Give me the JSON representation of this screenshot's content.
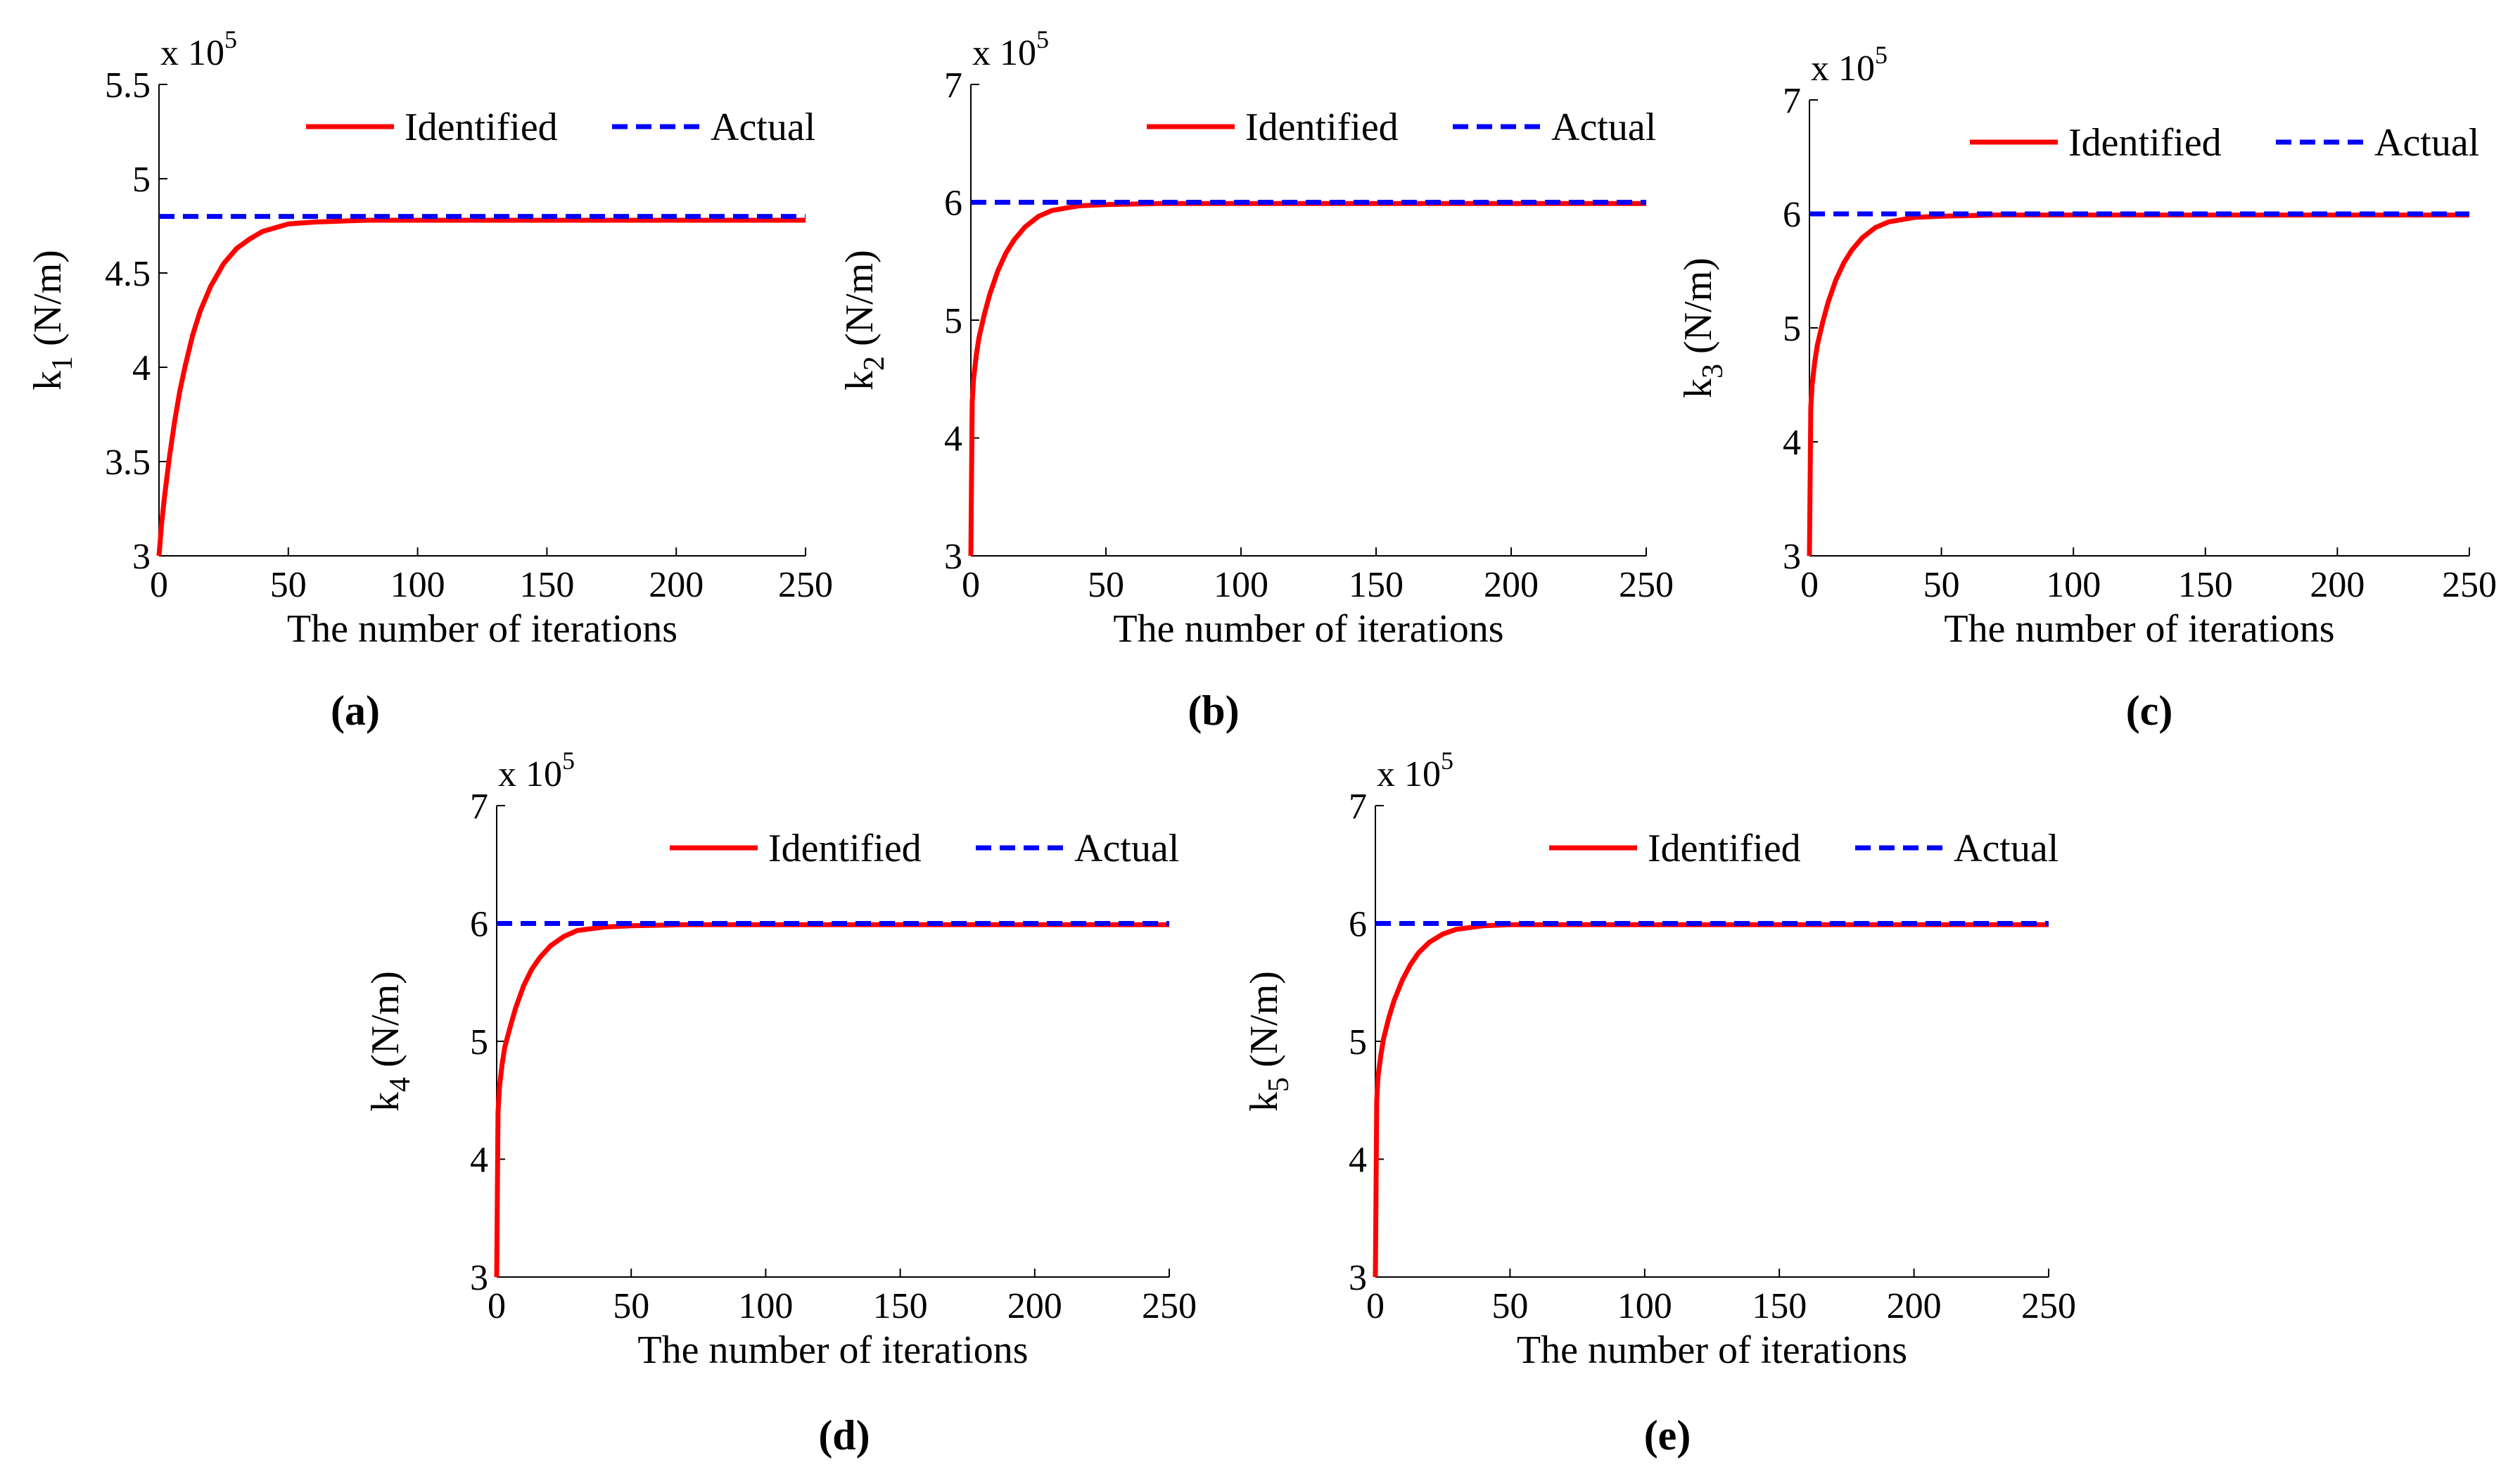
{
  "figure": {
    "legend": {
      "identified": "Identified",
      "actual": "Actual"
    },
    "colors": {
      "identified": "#ff0000",
      "actual": "#0000ff",
      "axis": "#000000"
    },
    "multiplier": {
      "base": "x 10",
      "exponent": "5"
    }
  },
  "chart_data": [
    {
      "type": "line",
      "panel_label": "(a)",
      "xlabel": "The number of iterations",
      "ylabel": {
        "main": "k",
        "sub": "1",
        "unit": "(N/m)"
      },
      "xlim": [
        0,
        250
      ],
      "ylim": [
        3,
        5.5
      ],
      "xticks": [
        0,
        50,
        100,
        150,
        200,
        250
      ],
      "xtick_labels": [
        "0",
        "50",
        "100",
        "150",
        "200",
        "250"
      ],
      "yticks": [
        3,
        3.5,
        4,
        4.5,
        5,
        5.5
      ],
      "ytick_labels": [
        "3",
        "3.5",
        "4",
        "4.5",
        "5",
        "5.5"
      ],
      "y_scale_note": "x 10^5",
      "series": [
        {
          "name": "Identified",
          "style": "solid",
          "x": [
            0,
            1,
            2,
            4,
            6,
            8,
            10,
            13,
            16,
            20,
            25,
            30,
            35,
            40,
            50,
            60,
            80,
            100,
            150,
            200,
            250
          ],
          "y": [
            3.0,
            3.17,
            3.3,
            3.52,
            3.71,
            3.87,
            4.0,
            4.17,
            4.3,
            4.43,
            4.55,
            4.63,
            4.68,
            4.72,
            4.76,
            4.77,
            4.78,
            4.78,
            4.78,
            4.78,
            4.78
          ]
        },
        {
          "name": "Actual",
          "style": "dashed",
          "x": [
            0,
            250
          ],
          "y": [
            4.8,
            4.8
          ]
        }
      ]
    },
    {
      "type": "line",
      "panel_label": "(b)",
      "xlabel": "The number of iterations",
      "ylabel": {
        "main": "k",
        "sub": "2",
        "unit": "(N/m)"
      },
      "xlim": [
        0,
        250
      ],
      "ylim": [
        3,
        7
      ],
      "xticks": [
        0,
        50,
        100,
        150,
        200,
        250
      ],
      "xtick_labels": [
        "0",
        "50",
        "100",
        "150",
        "200",
        "250"
      ],
      "yticks": [
        3,
        4,
        5,
        6,
        7
      ],
      "ytick_labels": [
        "3",
        "4",
        "5",
        "6",
        "7"
      ],
      "y_scale_note": "x 10^5",
      "series": [
        {
          "name": "Identified",
          "style": "solid",
          "x": [
            0,
            0.5,
            1,
            2,
            3,
            5,
            7,
            10,
            13,
            16,
            20,
            25,
            30,
            40,
            50,
            70,
            100,
            150,
            200,
            250
          ],
          "y": [
            3.0,
            4.3,
            4.5,
            4.7,
            4.85,
            5.05,
            5.22,
            5.42,
            5.57,
            5.68,
            5.79,
            5.88,
            5.93,
            5.97,
            5.98,
            5.99,
            5.99,
            5.99,
            5.99,
            5.99
          ]
        },
        {
          "name": "Actual",
          "style": "dashed",
          "x": [
            0,
            250
          ],
          "y": [
            6.0,
            6.0
          ]
        }
      ]
    },
    {
      "type": "line",
      "panel_label": "(c)",
      "xlabel": "The number of iterations",
      "ylabel": {
        "main": "k",
        "sub": "3",
        "unit": "(N/m)"
      },
      "xlim": [
        0,
        250
      ],
      "ylim": [
        3,
        7
      ],
      "xticks": [
        0,
        50,
        100,
        150,
        200,
        250
      ],
      "xtick_labels": [
        "0",
        "50",
        "100",
        "150",
        "200",
        "250"
      ],
      "yticks": [
        3,
        4,
        5,
        6,
        7
      ],
      "ytick_labels": [
        "3",
        "4",
        "5",
        "6",
        "7"
      ],
      "y_scale_note": "x 10^5",
      "series": [
        {
          "name": "Identified",
          "style": "solid",
          "x": [
            0,
            0.5,
            1,
            2,
            3,
            5,
            7,
            10,
            13,
            16,
            20,
            25,
            30,
            40,
            50,
            70,
            100,
            150,
            200,
            250
          ],
          "y": [
            3.0,
            4.3,
            4.5,
            4.7,
            4.85,
            5.05,
            5.22,
            5.42,
            5.57,
            5.68,
            5.79,
            5.88,
            5.93,
            5.97,
            5.98,
            5.99,
            5.99,
            5.99,
            5.99,
            5.99
          ]
        },
        {
          "name": "Actual",
          "style": "dashed",
          "x": [
            0,
            250
          ],
          "y": [
            6.0,
            6.0
          ]
        }
      ]
    },
    {
      "type": "line",
      "panel_label": "(d)",
      "xlabel": "The number of iterations",
      "ylabel": {
        "main": "k",
        "sub": "4",
        "unit": "(N/m)"
      },
      "xlim": [
        0,
        250
      ],
      "ylim": [
        3,
        7
      ],
      "xticks": [
        0,
        50,
        100,
        150,
        200,
        250
      ],
      "xtick_labels": [
        "0",
        "50",
        "100",
        "150",
        "200",
        "250"
      ],
      "yticks": [
        3,
        4,
        5,
        6,
        7
      ],
      "ytick_labels": [
        "3",
        "4",
        "5",
        "6",
        "7"
      ],
      "y_scale_note": "x 10^5",
      "series": [
        {
          "name": "Identified",
          "style": "solid",
          "x": [
            0,
            0.5,
            1,
            2,
            3,
            5,
            7,
            10,
            13,
            16,
            20,
            25,
            30,
            40,
            50,
            70,
            100,
            150,
            200,
            250
          ],
          "y": [
            3.0,
            4.4,
            4.6,
            4.8,
            4.95,
            5.12,
            5.28,
            5.47,
            5.61,
            5.71,
            5.81,
            5.89,
            5.94,
            5.97,
            5.98,
            5.99,
            5.99,
            5.99,
            5.99,
            5.99
          ]
        },
        {
          "name": "Actual",
          "style": "dashed",
          "x": [
            0,
            250
          ],
          "y": [
            6.0,
            6.0
          ]
        }
      ]
    },
    {
      "type": "line",
      "panel_label": "(e)",
      "xlabel": "The number of iterations",
      "ylabel": {
        "main": "k",
        "sub": "5",
        "unit": "(N/m)"
      },
      "xlim": [
        0,
        250
      ],
      "ylim": [
        3,
        7
      ],
      "xticks": [
        0,
        50,
        100,
        150,
        200,
        250
      ],
      "xtick_labels": [
        "0",
        "50",
        "100",
        "150",
        "200",
        "250"
      ],
      "yticks": [
        3,
        4,
        5,
        6,
        7
      ],
      "ytick_labels": [
        "3",
        "4",
        "5",
        "6",
        "7"
      ],
      "y_scale_note": "x 10^5",
      "series": [
        {
          "name": "Identified",
          "style": "solid",
          "x": [
            0,
            0.5,
            1,
            2,
            3,
            5,
            7,
            10,
            13,
            16,
            20,
            25,
            30,
            40,
            50,
            70,
            100,
            150,
            200,
            250
          ],
          "y": [
            3.0,
            4.5,
            4.7,
            4.88,
            5.02,
            5.2,
            5.35,
            5.52,
            5.65,
            5.75,
            5.84,
            5.91,
            5.95,
            5.98,
            5.99,
            5.99,
            5.99,
            5.99,
            5.99,
            5.99
          ]
        },
        {
          "name": "Actual",
          "style": "dashed",
          "x": [
            0,
            250
          ],
          "y": [
            6.0,
            6.0
          ]
        }
      ]
    }
  ]
}
